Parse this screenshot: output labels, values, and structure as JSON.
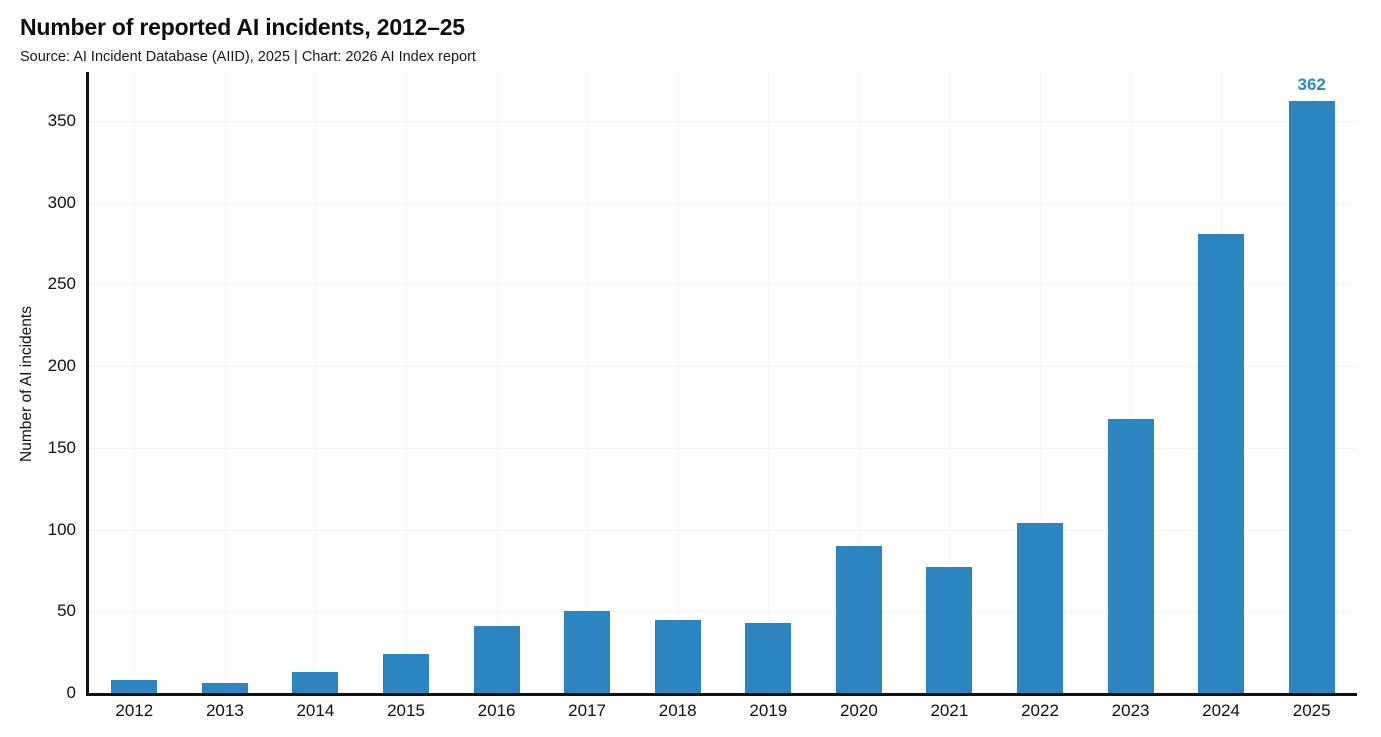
{
  "header": {
    "title": "Number of reported AI incidents, 2012–25",
    "subtitle": "Source: AI Incident Database (AIID), 2025 | Chart: 2026 AI Index report"
  },
  "chart_data": {
    "type": "bar",
    "title": "Number of reported AI incidents, 2012–25",
    "categories": [
      "2012",
      "2013",
      "2014",
      "2015",
      "2016",
      "2017",
      "2018",
      "2019",
      "2020",
      "2021",
      "2022",
      "2023",
      "2024",
      "2025"
    ],
    "values": [
      8,
      6,
      13,
      24,
      41,
      50,
      45,
      43,
      90,
      77,
      104,
      168,
      281,
      362
    ],
    "xlabel": "",
    "ylabel": "Number of AI incidents",
    "yticks": [
      0,
      50,
      100,
      150,
      200,
      250,
      300,
      350
    ],
    "ylim": [
      0,
      380
    ],
    "grid": true,
    "legend": false,
    "annotations": [
      {
        "category": "2025",
        "label": "362"
      }
    ]
  },
  "colors": {
    "bar": "#2d85c0",
    "annotation": "#2f87c3",
    "axis": "#111111",
    "grid": "#f3f3f3",
    "text": "#111111",
    "background": "#ffffff"
  }
}
